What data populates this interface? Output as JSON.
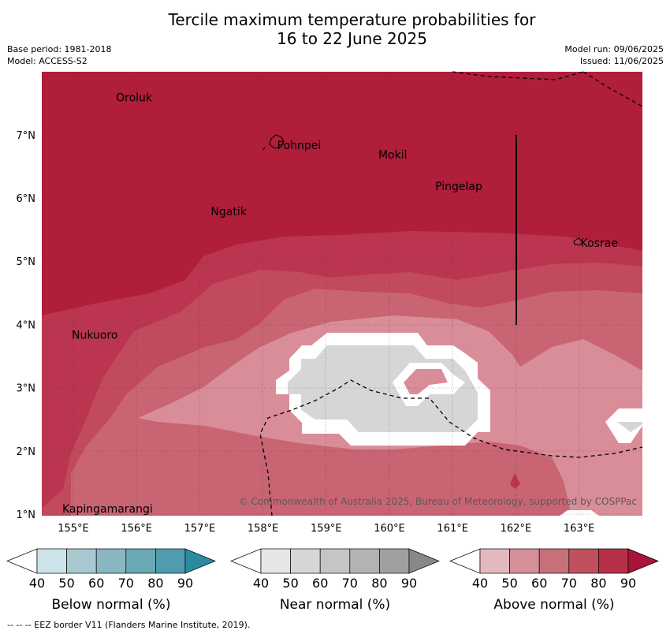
{
  "title_line1": "Tercile maximum temperature probabilities for",
  "title_line2": "16 to 22 June 2025",
  "base_period": "Base period: 1981-2018",
  "model": "Model: ACCESS-S2",
  "model_run": "Model run: 09/06/2025",
  "issued": "Issued: 11/06/2025",
  "copyright": "© Commonwealth of Australia 2025, Bureau of Meteorology, supported by COSPPac",
  "footer": "--  --  -- EEZ border V11 (Flanders Marine Institute, 2019).",
  "places": [
    {
      "name": "Oroluk",
      "lon": 155.65,
      "lat": 7.6
    },
    {
      "name": "Pohnpei",
      "lon": 158.2,
      "lat": 6.85
    },
    {
      "name": "Mokil",
      "lon": 159.8,
      "lat": 6.7
    },
    {
      "name": "Pingelap",
      "lon": 160.7,
      "lat": 6.2
    },
    {
      "name": "Ngatik",
      "lon": 157.15,
      "lat": 5.8
    },
    {
      "name": "Kosrae",
      "lon": 163.0,
      "lat": 5.3
    },
    {
      "name": "Nukuoro",
      "lon": 154.95,
      "lat": 3.85
    },
    {
      "name": "Kapingamarangi",
      "lon": 154.8,
      "lat": 1.1
    }
  ],
  "axes": {
    "lat_ticks": [
      "1°N",
      "2°N",
      "3°N",
      "4°N",
      "5°N",
      "6°N",
      "7°N"
    ],
    "lon_ticks": [
      "155°E",
      "156°E",
      "157°E",
      "158°E",
      "159°E",
      "160°E",
      "161°E",
      "162°E",
      "163°E"
    ]
  },
  "colorbars": [
    {
      "label": "Below normal (%)",
      "ticks": [
        "40",
        "50",
        "60",
        "70",
        "80",
        "90"
      ],
      "colors": [
        "#ffffff",
        "#cce3e9",
        "#a8c9d0",
        "#89b6c0",
        "#6aa8b5",
        "#4e9cad",
        "#2a8aa0"
      ]
    },
    {
      "label": "Near normal (%)",
      "ticks": [
        "40",
        "50",
        "60",
        "70",
        "80",
        "90"
      ],
      "colors": [
        "#ffffff",
        "#e6e6e6",
        "#d6d6d6",
        "#c5c5c5",
        "#b3b3b3",
        "#a0a0a0",
        "#888888"
      ]
    },
    {
      "label": "Above normal (%)",
      "ticks": [
        "40",
        "50",
        "60",
        "70",
        "80",
        "90"
      ],
      "colors": [
        "#ffffff",
        "#e3b8be",
        "#d58f99",
        "#c87079",
        "#c1505f",
        "#b63047",
        "#a8143a"
      ]
    }
  ]
}
